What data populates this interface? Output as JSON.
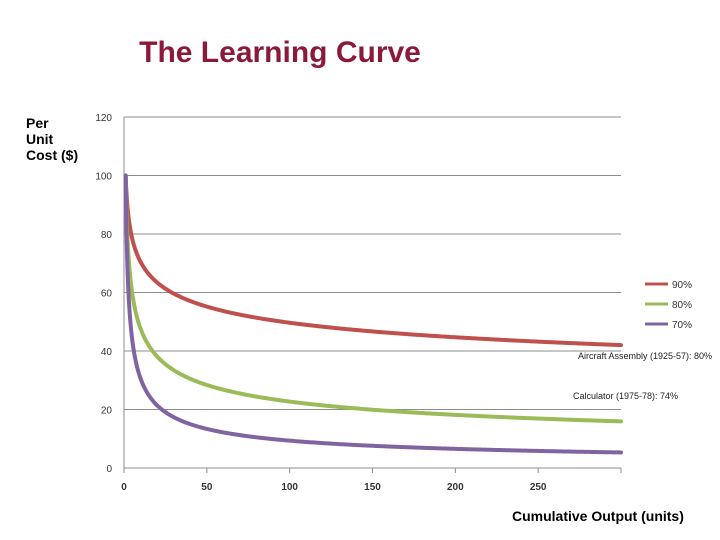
{
  "chart_data": {
    "type": "line",
    "title": "The Learning Curve",
    "ylabel_lines": [
      "Per",
      "Unit",
      "Cost ($)"
    ],
    "xlabel": "Cumulative Output (units)",
    "xlim": [
      0,
      300
    ],
    "ylim": [
      0,
      120
    ],
    "x_ticks": [
      0,
      50,
      100,
      150,
      200,
      250
    ],
    "y_ticks": [
      0,
      20,
      40,
      60,
      80,
      100,
      120
    ],
    "grid": "horizontal",
    "legend_position": "right",
    "series": [
      {
        "name": "90%",
        "color": "#c0504d",
        "rate": 0.9,
        "x": [
          1,
          2,
          5,
          10,
          25,
          50,
          100,
          150,
          200,
          250,
          300
        ],
        "values": [
          100,
          90,
          78.4,
          70.5,
          61.4,
          55.3,
          49.7,
          46.8,
          44.8,
          43.3,
          42.0
        ]
      },
      {
        "name": "80%",
        "color": "#9bbb59",
        "rate": 0.8,
        "x": [
          1,
          2,
          5,
          10,
          25,
          50,
          100,
          150,
          200,
          250,
          300
        ],
        "values": [
          100,
          80,
          59.6,
          47.7,
          35.4,
          28.3,
          22.7,
          19.9,
          18.1,
          16.9,
          15.9
        ]
      },
      {
        "name": "70%",
        "color": "#8064a2",
        "rate": 0.7,
        "x": [
          1,
          2,
          5,
          10,
          25,
          50,
          100,
          150,
          200,
          250,
          300
        ],
        "values": [
          100,
          70,
          43.7,
          30.6,
          19.2,
          13.4,
          9.4,
          7.6,
          6.6,
          5.9,
          5.3
        ]
      }
    ],
    "annotations": [
      "Aircraft Assembly (1925-57): 80%",
      "Calculator (1975-78): 74%"
    ]
  }
}
